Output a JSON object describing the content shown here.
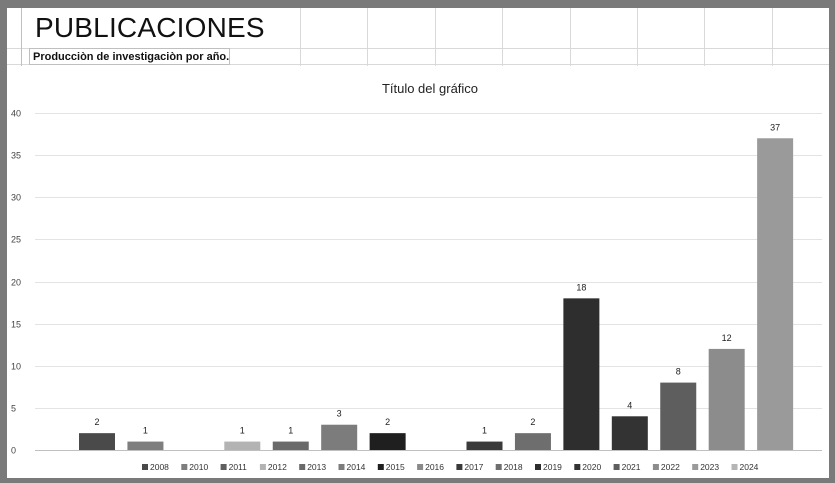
{
  "sheet": {
    "heading": "PUBLICACIONES",
    "subheading": "Producciòn de investigaciòn por año."
  },
  "chart_data": {
    "type": "bar",
    "title": "Título del gráfico",
    "xlabel": "",
    "ylabel": "",
    "ylim": [
      0,
      40
    ],
    "yticks": [
      0,
      5,
      10,
      15,
      20,
      25,
      30,
      35,
      40
    ],
    "grid": true,
    "legend": "bottom",
    "categories": [
      "2008",
      "2010",
      "2011",
      "2012",
      "2013",
      "2014",
      "2015",
      "2016",
      "2017",
      "2018",
      "2019",
      "2020",
      "2021",
      "2022",
      "2023",
      "2024"
    ],
    "values": [
      2,
      1,
      null,
      1,
      1,
      3,
      2,
      null,
      1,
      2,
      18,
      4,
      8,
      12,
      37,
      null
    ],
    "colors": [
      "#4a4a4a",
      "#7e7e7e",
      "#5f5f5f",
      "#b3b3b3",
      "#6a6a6a",
      "#7c7c7c",
      "#1f1f1f",
      "#8a8a8a",
      "#3a3a3a",
      "#6e6e6e",
      "#2e2e2e",
      "#333333",
      "#5e5e5e",
      "#8c8c8c",
      "#9a9a9a",
      "#b5b5b5"
    ]
  }
}
